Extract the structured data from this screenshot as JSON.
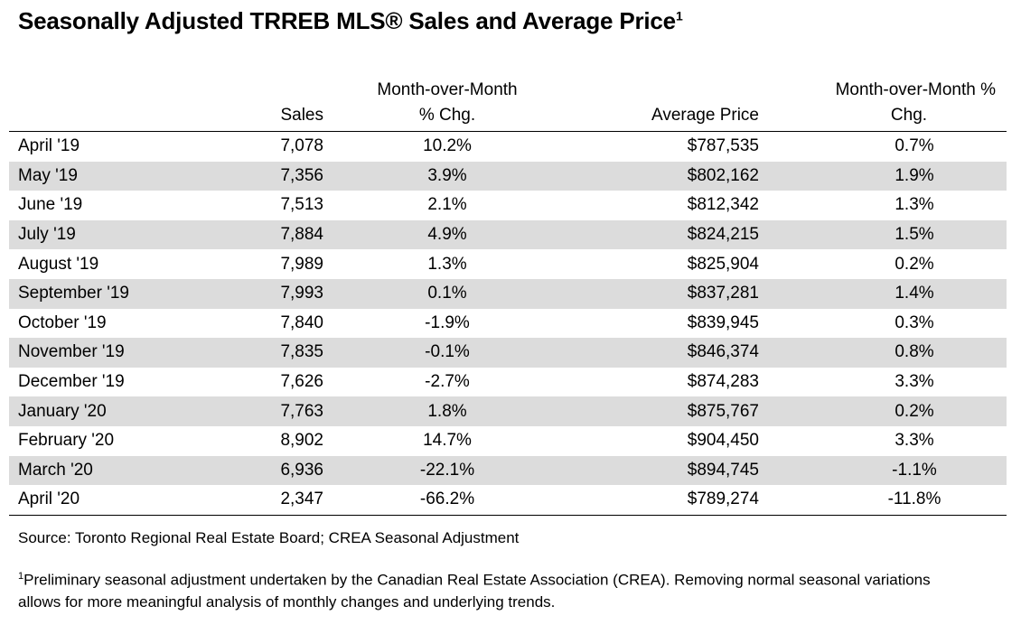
{
  "title": {
    "text": "Seasonally Adjusted TRREB MLS® Sales and Average Price",
    "superscript": "1"
  },
  "table": {
    "headers": {
      "month": "",
      "sales": "Sales",
      "mom_line1": "Month-over-Month",
      "mom_line2": "% Chg.",
      "avg_price": "Average Price",
      "mom2_line1": "Month-over-Month %",
      "mom2_line2": "Chg."
    },
    "rows": [
      {
        "month": "April '19",
        "sales": "7,078",
        "sales_mom": "10.2%",
        "avg_price": "$787,535",
        "price_mom": "0.7%"
      },
      {
        "month": "May '19",
        "sales": "7,356",
        "sales_mom": "3.9%",
        "avg_price": "$802,162",
        "price_mom": "1.9%"
      },
      {
        "month": "June '19",
        "sales": "7,513",
        "sales_mom": "2.1%",
        "avg_price": "$812,342",
        "price_mom": "1.3%"
      },
      {
        "month": "July '19",
        "sales": "7,884",
        "sales_mom": "4.9%",
        "avg_price": "$824,215",
        "price_mom": "1.5%"
      },
      {
        "month": "August '19",
        "sales": "7,989",
        "sales_mom": "1.3%",
        "avg_price": "$825,904",
        "price_mom": "0.2%"
      },
      {
        "month": "September '19",
        "sales": "7,993",
        "sales_mom": "0.1%",
        "avg_price": "$837,281",
        "price_mom": "1.4%"
      },
      {
        "month": "October '19",
        "sales": "7,840",
        "sales_mom": "-1.9%",
        "avg_price": "$839,945",
        "price_mom": "0.3%"
      },
      {
        "month": "November '19",
        "sales": "7,835",
        "sales_mom": "-0.1%",
        "avg_price": "$846,374",
        "price_mom": "0.8%"
      },
      {
        "month": "December '19",
        "sales": "7,626",
        "sales_mom": "-2.7%",
        "avg_price": "$874,283",
        "price_mom": "3.3%"
      },
      {
        "month": "January '20",
        "sales": "7,763",
        "sales_mom": "1.8%",
        "avg_price": "$875,767",
        "price_mom": "0.2%"
      },
      {
        "month": "February '20",
        "sales": "8,902",
        "sales_mom": "14.7%",
        "avg_price": "$904,450",
        "price_mom": "3.3%"
      },
      {
        "month": "March '20",
        "sales": "6,936",
        "sales_mom": "-22.1%",
        "avg_price": "$894,745",
        "price_mom": "-1.1%"
      },
      {
        "month": "April '20",
        "sales": "2,347",
        "sales_mom": "-66.2%",
        "avg_price": "$789,274",
        "price_mom": "-11.8%"
      }
    ]
  },
  "source": "Source: Toronto Regional Real Estate Board; CREA Seasonal Adjustment",
  "footnote": {
    "marker": "1",
    "line1": "Preliminary seasonal adjustment undertaken by the Canadian Real Estate Association (CREA).  Removing normal seasonal variations",
    "line2": "allows for more meaningful analysis of monthly changes and underlying trends."
  },
  "colors": {
    "stripe": "#dcdcdc",
    "rule": "#000000"
  }
}
